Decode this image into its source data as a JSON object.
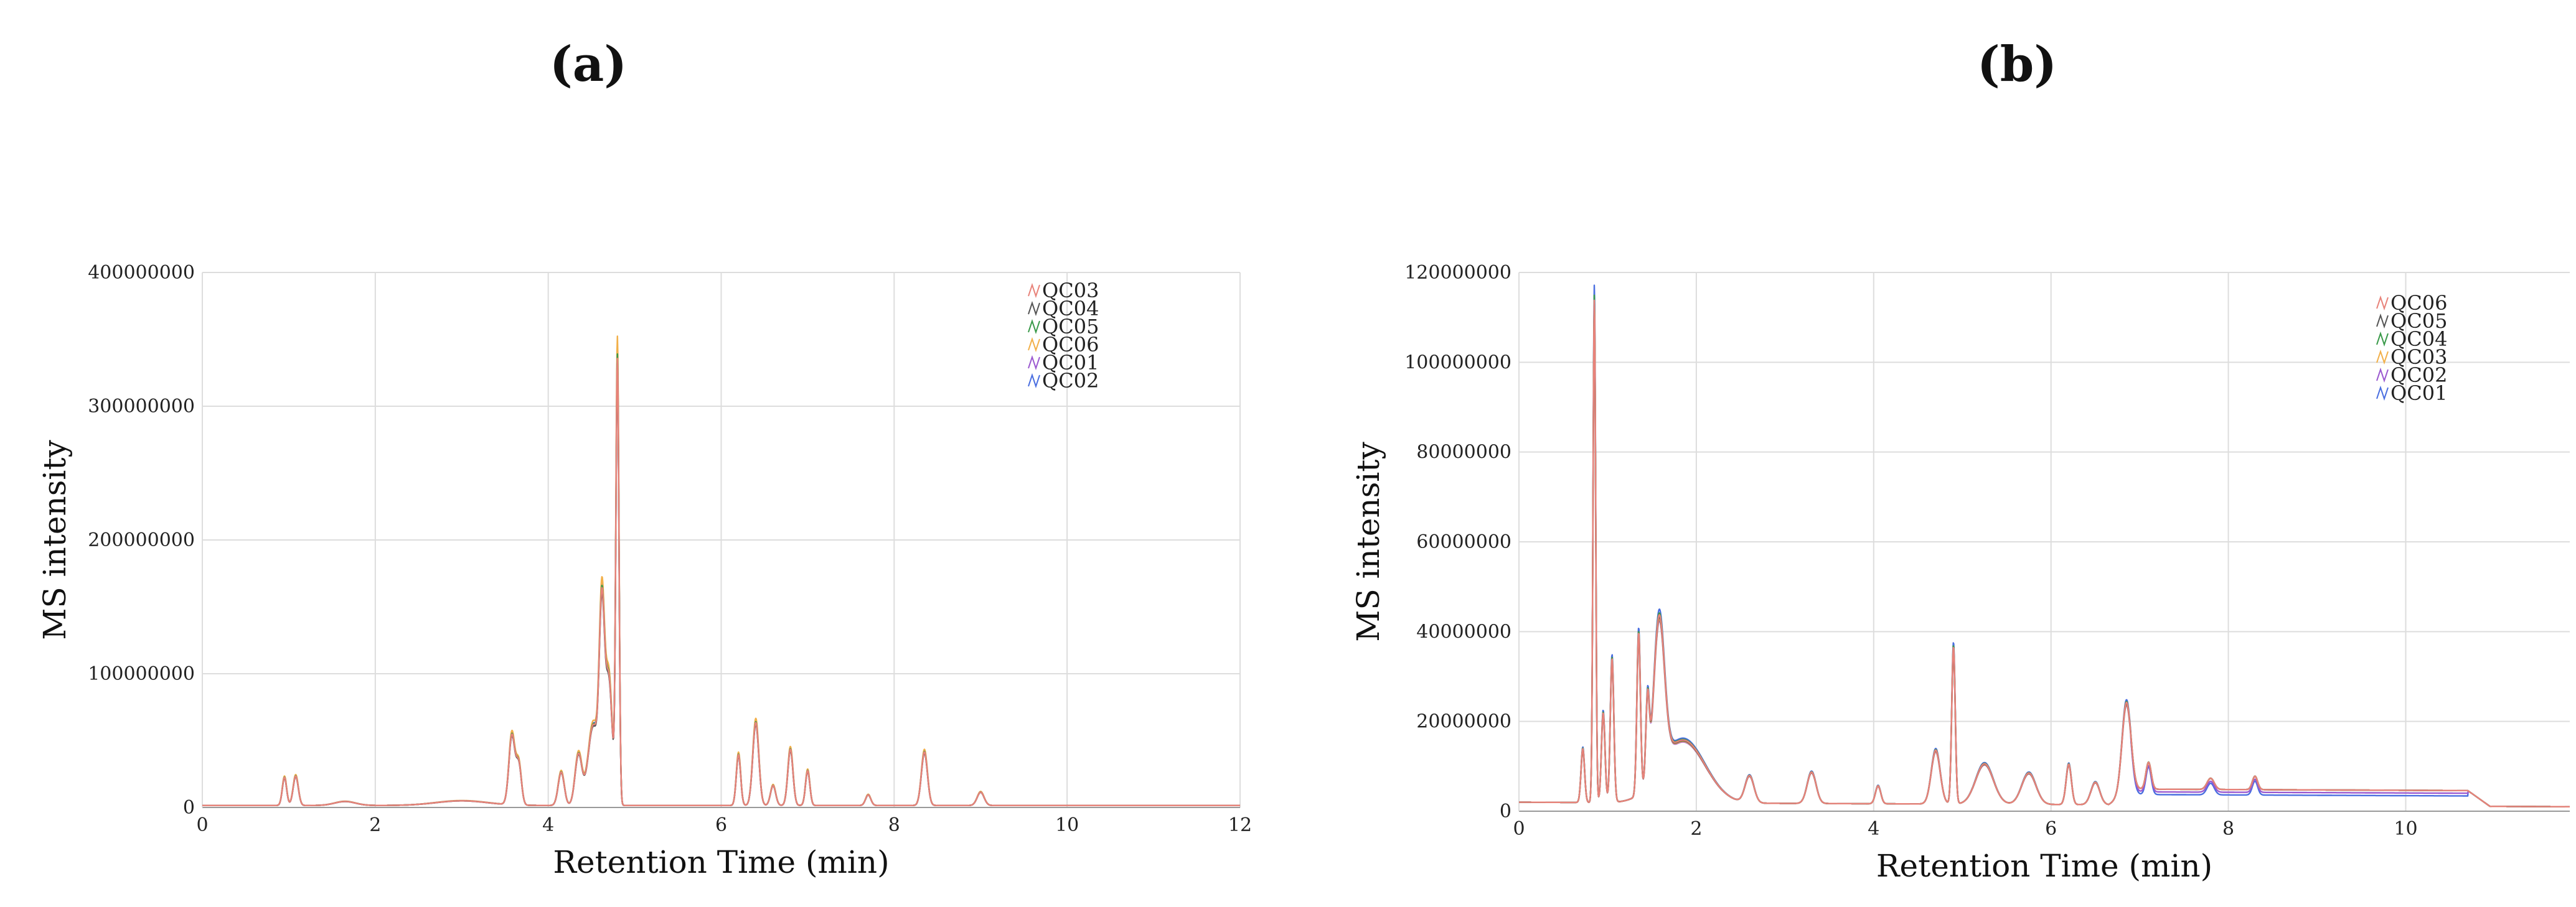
{
  "panels": {
    "a": {
      "label": "(a)"
    },
    "b": {
      "label": "(b)"
    }
  },
  "chart_data": [
    {
      "id": "a",
      "type": "line",
      "title": "",
      "xlabel": "Retention Time (min)",
      "ylabel": "MS intensity",
      "xlim": [
        0,
        12
      ],
      "ylim": [
        0,
        400000000
      ],
      "xticks": [
        0,
        2,
        4,
        6,
        8,
        10,
        12
      ],
      "yticks": [
        0,
        100000000,
        200000000,
        300000000,
        400000000
      ],
      "ytick_labels": [
        "0",
        "100000000",
        "200000000",
        "300000000",
        "400000000"
      ],
      "grid": true,
      "legend_position": "top-right",
      "series": [
        {
          "name": "QC03",
          "color": "#e8837a",
          "scale": 1.0,
          "offset": 0
        },
        {
          "name": "QC04",
          "color": "#555555",
          "scale": 0.98,
          "offset": 0
        },
        {
          "name": "QC05",
          "color": "#3a9a4a",
          "scale": 1.01,
          "offset": 0
        },
        {
          "name": "QC06",
          "color": "#f2b04a",
          "scale": 1.05,
          "offset": 0
        },
        {
          "name": "QC01",
          "color": "#9b59d0",
          "scale": 0.99,
          "offset": 0
        },
        {
          "name": "QC02",
          "color": "#4a6ee0",
          "scale": 1.02,
          "offset": 0
        }
      ],
      "baseline": 1500000,
      "baseline_end": 1500000,
      "peaks": [
        {
          "x": 0.95,
          "y": 21000000,
          "w": 0.025
        },
        {
          "x": 1.08,
          "y": 22000000,
          "w": 0.03
        },
        {
          "x": 1.65,
          "y": 3000000,
          "w": 0.12
        },
        {
          "x": 3.0,
          "y": 3500000,
          "w": 0.3
        },
        {
          "x": 3.58,
          "y": 52000000,
          "w": 0.035
        },
        {
          "x": 3.66,
          "y": 30000000,
          "w": 0.03
        },
        {
          "x": 4.15,
          "y": 25000000,
          "w": 0.035
        },
        {
          "x": 4.35,
          "y": 38000000,
          "w": 0.04
        },
        {
          "x": 4.52,
          "y": 60000000,
          "w": 0.06
        },
        {
          "x": 4.62,
          "y": 135000000,
          "w": 0.03
        },
        {
          "x": 4.7,
          "y": 95000000,
          "w": 0.04
        },
        {
          "x": 4.8,
          "y": 330000000,
          "w": 0.018
        },
        {
          "x": 6.2,
          "y": 38000000,
          "w": 0.025
        },
        {
          "x": 6.4,
          "y": 62000000,
          "w": 0.035
        },
        {
          "x": 6.6,
          "y": 15000000,
          "w": 0.03
        },
        {
          "x": 6.8,
          "y": 42000000,
          "w": 0.03
        },
        {
          "x": 7.0,
          "y": 26000000,
          "w": 0.025
        },
        {
          "x": 7.7,
          "y": 8000000,
          "w": 0.03
        },
        {
          "x": 8.35,
          "y": 40000000,
          "w": 0.035
        },
        {
          "x": 9.0,
          "y": 10000000,
          "w": 0.04
        }
      ]
    },
    {
      "id": "b",
      "type": "line",
      "title": "",
      "xlabel": "Retention Time (min)",
      "ylabel": "MS intensity",
      "xlim": [
        0,
        12
      ],
      "ylim": [
        0,
        120000000
      ],
      "xticks": [
        0,
        2,
        4,
        6,
        8,
        10
      ],
      "yticks": [
        0,
        20000000,
        40000000,
        60000000,
        80000000,
        100000000,
        120000000
      ],
      "ytick_labels": [
        "0",
        "20000000",
        "40000000",
        "60000000",
        "80000000",
        "100000000",
        "120000000"
      ],
      "grid": true,
      "legend_position": "top-right",
      "series": [
        {
          "name": "QC06",
          "color": "#e8837a",
          "scale": 1.0,
          "offset": 0
        },
        {
          "name": "QC05",
          "color": "#555555",
          "scale": 0.99,
          "offset": 0
        },
        {
          "name": "QC04",
          "color": "#3a9a4a",
          "scale": 1.01,
          "offset": 0
        },
        {
          "name": "QC03",
          "color": "#f2b04a",
          "scale": 0.98,
          "offset": 0
        },
        {
          "name": "QC02",
          "color": "#9b59d0",
          "scale": 0.97,
          "offset": -600000
        },
        {
          "name": "QC01",
          "color": "#4a6ee0",
          "scale": 1.03,
          "offset": -1200000
        }
      ],
      "baseline": 2000000,
      "baseline_end": 1000000,
      "plateau": {
        "x0": 6.9,
        "x1": 10.7,
        "y": 3500000
      },
      "peaks": [
        {
          "x": 0.72,
          "y": 12000000,
          "w": 0.02
        },
        {
          "x": 0.85,
          "y": 112000000,
          "w": 0.015
        },
        {
          "x": 0.95,
          "y": 20000000,
          "w": 0.02
        },
        {
          "x": 1.05,
          "y": 32000000,
          "w": 0.02
        },
        {
          "x": 1.35,
          "y": 36000000,
          "w": 0.02
        },
        {
          "x": 1.45,
          "y": 18000000,
          "w": 0.02
        },
        {
          "x": 1.58,
          "y": 34000000,
          "w": 0.06
        },
        {
          "x": 1.85,
          "y": 14000000,
          "w": 0.25
        },
        {
          "x": 2.6,
          "y": 6000000,
          "w": 0.05
        },
        {
          "x": 3.3,
          "y": 7000000,
          "w": 0.05
        },
        {
          "x": 4.05,
          "y": 4000000,
          "w": 0.03
        },
        {
          "x": 4.7,
          "y": 12000000,
          "w": 0.05
        },
        {
          "x": 4.9,
          "y": 35000000,
          "w": 0.02
        },
        {
          "x": 5.25,
          "y": 9000000,
          "w": 0.1
        },
        {
          "x": 5.75,
          "y": 7000000,
          "w": 0.08
        },
        {
          "x": 6.2,
          "y": 9000000,
          "w": 0.03
        },
        {
          "x": 6.5,
          "y": 5000000,
          "w": 0.05
        },
        {
          "x": 6.85,
          "y": 20000000,
          "w": 0.05
        },
        {
          "x": 7.1,
          "y": 6000000,
          "w": 0.03
        },
        {
          "x": 7.8,
          "y": 2500000,
          "w": 0.04
        },
        {
          "x": 8.3,
          "y": 3000000,
          "w": 0.03
        }
      ]
    }
  ]
}
